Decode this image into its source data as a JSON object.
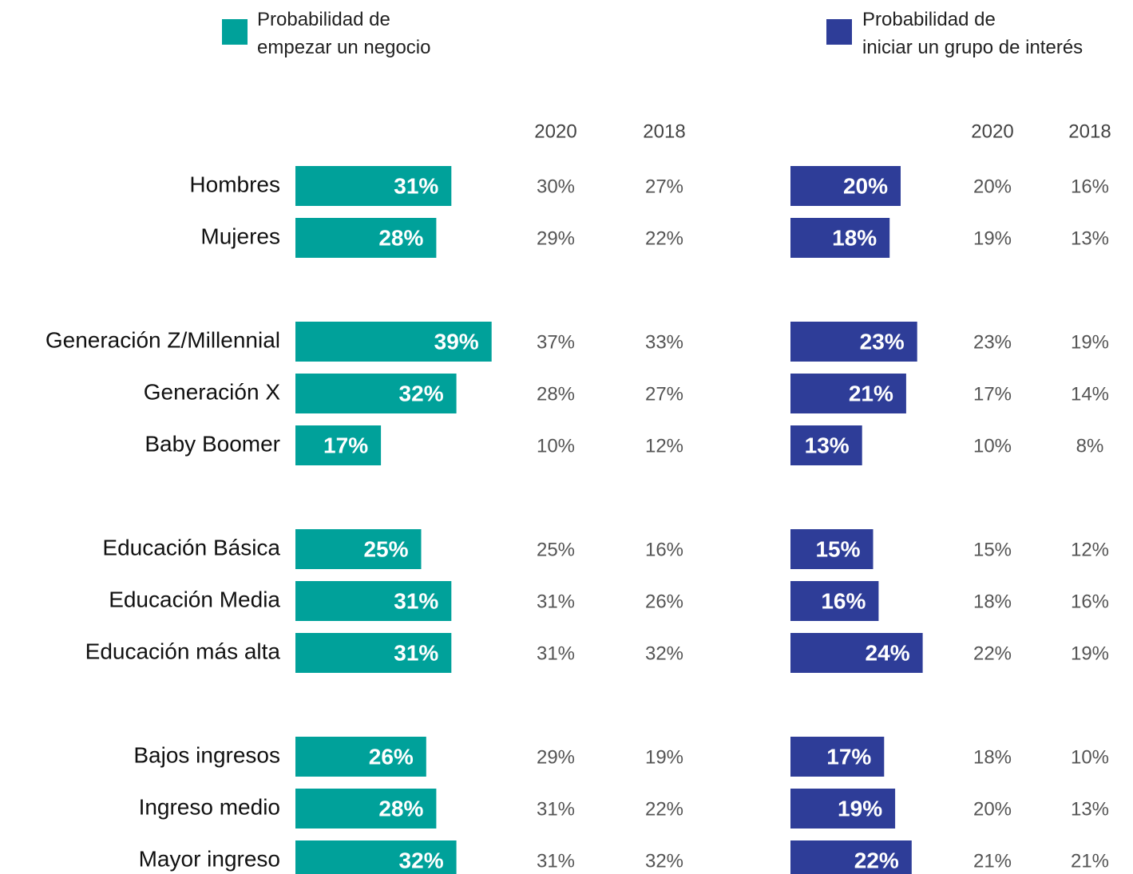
{
  "chart_data": {
    "type": "bar",
    "orientation": "horizontal",
    "categories": [
      "Hombres",
      "Mujeres",
      "Generación Z/Millennial",
      "Generación X",
      "Baby Boomer",
      "Educación Básica",
      "Educación Media",
      "Educación más alta",
      "Bajos ingresos",
      "Ingreso medio",
      "Mayor ingreso"
    ],
    "series": [
      {
        "name": "Probabilidad de\nempezar un negocio",
        "color": "#00a19a",
        "values": [
          31,
          28,
          39,
          32,
          17,
          25,
          31,
          31,
          26,
          28,
          32
        ],
        "value_labels": [
          "31%",
          "28%",
          "39%",
          "32%",
          "17%",
          "25%",
          "31%",
          "31%",
          "26%",
          "28%",
          "32%"
        ],
        "columns": [
          {
            "header": "2020",
            "values": [
              "30%",
              "29%",
              "37%",
              "28%",
              "10%",
              "25%",
              "31%",
              "31%",
              "29%",
              "31%",
              "31%"
            ]
          },
          {
            "header": "2018",
            "values": [
              "27%",
              "22%",
              "33%",
              "27%",
              "12%",
              "16%",
              "26%",
              "32%",
              "19%",
              "22%",
              "32%"
            ]
          }
        ]
      },
      {
        "name": "Probabilidad de\niniciar un grupo de interés",
        "color": "#2e3d98",
        "values": [
          20,
          18,
          23,
          21,
          13,
          15,
          16,
          24,
          17,
          19,
          22
        ],
        "value_labels": [
          "20%",
          "18%",
          "23%",
          "21%",
          "13%",
          "15%",
          "16%",
          "24%",
          "17%",
          "19%",
          "22%"
        ],
        "columns": [
          {
            "header": "2020",
            "values": [
              "20%",
              "19%",
              "23%",
              "17%",
              "10%",
              "15%",
              "18%",
              "22%",
              "18%",
              "20%",
              "21%"
            ]
          },
          {
            "header": "2018",
            "values": [
              "16%",
              "13%",
              "19%",
              "14%",
              "8%",
              "12%",
              "16%",
              "19%",
              "10%",
              "13%",
              "21%"
            ]
          }
        ]
      }
    ]
  }
}
